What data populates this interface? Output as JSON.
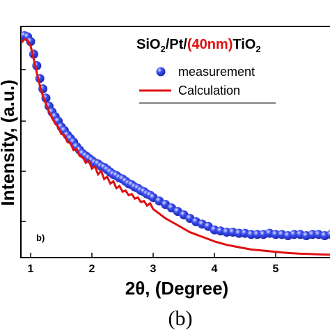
{
  "chart_data": {
    "type": "scatter",
    "title_parts": [
      {
        "text": "SiO",
        "color": "#000000"
      },
      {
        "text": "2",
        "color": "#000000",
        "sub": true
      },
      {
        "text": "/Pt/",
        "color": "#000000"
      },
      {
        "text": "(40nm)",
        "color": "#e01010"
      },
      {
        "text": "TiO",
        "color": "#000000"
      },
      {
        "text": "2",
        "color": "#000000",
        "sub": true
      }
    ],
    "xlabel": "2θ, (Degree)",
    "ylabel": "Intensity, (a.u.)",
    "panel_label": "b)",
    "caption": "(b)",
    "xlim": [
      0.8,
      6.0
    ],
    "ylim": [
      0,
      1
    ],
    "xticks": [
      1,
      2,
      3,
      4,
      5
    ],
    "legend": {
      "placement": "top-right",
      "entries": [
        "measurement",
        "Calculation"
      ]
    },
    "series": [
      {
        "name": "measurement",
        "marker": "sphere",
        "color": "#2b3ee6",
        "x": [
          0.85,
          0.9,
          0.95,
          1.0,
          1.05,
          1.1,
          1.15,
          1.2,
          1.25,
          1.3,
          1.35,
          1.4,
          1.45,
          1.5,
          1.55,
          1.6,
          1.65,
          1.7,
          1.75,
          1.8,
          1.85,
          1.9,
          1.95,
          2.0,
          2.05,
          2.1,
          2.15,
          2.2,
          2.25,
          2.3,
          2.35,
          2.4,
          2.45,
          2.5,
          2.55,
          2.6,
          2.65,
          2.7,
          2.75,
          2.8,
          2.85,
          2.9,
          2.95,
          3.0,
          3.1,
          3.2,
          3.3,
          3.4,
          3.5,
          3.6,
          3.7,
          3.8,
          3.9,
          4.0,
          4.1,
          4.2,
          4.3,
          4.4,
          4.5,
          4.6,
          4.7,
          4.8,
          4.9,
          5.0,
          5.1,
          5.2,
          5.3,
          5.4,
          5.5,
          5.6,
          5.7,
          5.8,
          5.9
        ],
        "y": [
          0.955,
          0.96,
          0.955,
          0.935,
          0.88,
          0.83,
          0.775,
          0.73,
          0.69,
          0.655,
          0.63,
          0.61,
          0.59,
          0.565,
          0.55,
          0.53,
          0.515,
          0.5,
          0.48,
          0.465,
          0.45,
          0.44,
          0.43,
          0.42,
          0.41,
          0.405,
          0.395,
          0.39,
          0.38,
          0.37,
          0.36,
          0.355,
          0.345,
          0.34,
          0.33,
          0.32,
          0.315,
          0.305,
          0.3,
          0.29,
          0.285,
          0.275,
          0.27,
          0.26,
          0.245,
          0.23,
          0.215,
          0.2,
          0.185,
          0.17,
          0.155,
          0.145,
          0.135,
          0.12,
          0.115,
          0.11,
          0.11,
          0.105,
          0.105,
          0.1,
          0.1,
          0.1,
          0.105,
          0.1,
          0.1,
          0.095,
          0.1,
          0.1,
          0.095,
          0.1,
          0.1,
          0.095,
          0.1
        ]
      },
      {
        "name": "Calculation",
        "marker": "line",
        "color": "#e01010",
        "x": [
          0.85,
          0.9,
          0.95,
          1.0,
          1.05,
          1.1,
          1.15,
          1.2,
          1.25,
          1.3,
          1.35,
          1.4,
          1.45,
          1.5,
          1.55,
          1.6,
          1.65,
          1.7,
          1.75,
          1.8,
          1.85,
          1.9,
          1.95,
          2.0,
          2.05,
          2.1,
          2.15,
          2.2,
          2.25,
          2.3,
          2.35,
          2.4,
          2.45,
          2.5,
          2.55,
          2.6,
          2.65,
          2.7,
          2.75,
          2.8,
          2.85,
          2.9,
          2.95,
          3.0,
          3.1,
          3.2,
          3.3,
          3.4,
          3.5,
          3.6,
          3.7,
          3.8,
          3.9,
          4.0,
          4.2,
          4.4,
          4.6,
          4.8,
          5.0,
          5.2,
          5.4,
          5.6,
          5.8,
          5.95
        ],
        "y": [
          0.93,
          0.945,
          0.94,
          0.915,
          0.86,
          0.8,
          0.745,
          0.7,
          0.665,
          0.63,
          0.605,
          0.58,
          0.565,
          0.535,
          0.53,
          0.5,
          0.495,
          0.465,
          0.47,
          0.44,
          0.435,
          0.41,
          0.42,
          0.385,
          0.395,
          0.36,
          0.375,
          0.34,
          0.35,
          0.32,
          0.33,
          0.3,
          0.31,
          0.285,
          0.29,
          0.27,
          0.275,
          0.255,
          0.26,
          0.24,
          0.245,
          0.225,
          0.235,
          0.21,
          0.19,
          0.17,
          0.155,
          0.14,
          0.125,
          0.11,
          0.1,
          0.09,
          0.08,
          0.07,
          0.055,
          0.045,
          0.035,
          0.03,
          0.025,
          0.02,
          0.017,
          0.015,
          0.013,
          0.012
        ]
      }
    ]
  }
}
